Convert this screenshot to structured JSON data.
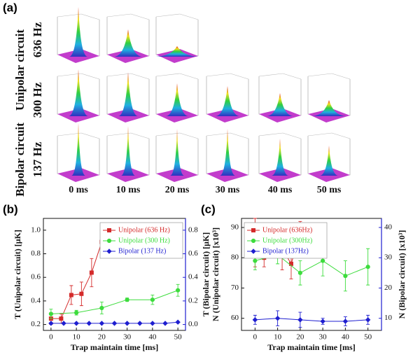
{
  "panel_a": {
    "label": "(a)",
    "rows": [
      {
        "group": "Unipolar circuit",
        "label": "636 Hz"
      },
      {
        "label": "300 Hz"
      },
      {
        "group": "Bipolar circuit",
        "label": "137 Hz"
      }
    ],
    "columns": [
      "0 ms",
      "10 ms",
      "20 ms",
      "30 ms",
      "40 ms",
      "50 ms"
    ]
  },
  "chart_data": [
    {
      "type": "line",
      "panel_label": "(b)",
      "xlabel": "Trap maintain time [ms]",
      "ylabel": "T (Unipolar circuit) [μK]",
      "y2label": "T (Bipolar circuit) [μK]",
      "y2color": "#1f1fd0",
      "xlim": [
        -3,
        53
      ],
      "xticks": [
        0,
        10,
        20,
        30,
        40,
        50
      ],
      "ylim": [
        0.15,
        1.1
      ],
      "yticks": [
        0.2,
        0.4,
        0.6,
        0.8,
        {
          "value": 1,
          "label": "1.0"
        }
      ],
      "y2lim": [
        -0.05,
        0.9
      ],
      "y2ticks": [
        {
          "value": 0,
          "label": "0.0"
        },
        0.2,
        0.4,
        0.6,
        0.8
      ],
      "legend": "upper right",
      "series": [
        {
          "name": "Unipolar (636 Hz)",
          "color": "#d42a2a",
          "marker": "square",
          "x": [
            0,
            4,
            8,
            12,
            16,
            20
          ],
          "values": [
            0.25,
            0.25,
            0.45,
            0.46,
            0.64,
            0.9
          ],
          "errors": [
            0.05,
            0.04,
            0.08,
            0.1,
            0.12,
            0.1
          ]
        },
        {
          "name": "Unipolar (300 Hz)",
          "color": "#3ddc3d",
          "marker": "circle",
          "x": [
            0,
            10,
            20,
            30,
            40,
            50
          ],
          "values": [
            0.29,
            0.3,
            0.34,
            0.41,
            0.41,
            0.49
          ],
          "errors": [
            0.04,
            0.02,
            0.05,
            0.015,
            0.04,
            0.05
          ]
        },
        {
          "name": "Bipolar (137 Hz)",
          "color": "#1f1fd0",
          "marker": "diamond",
          "axis": "y2",
          "x": [
            0,
            5,
            10,
            15,
            20,
            25,
            30,
            35,
            40,
            45,
            50
          ],
          "values": [
            0.01,
            0.01,
            0.01,
            0.01,
            0.01,
            0.01,
            0.01,
            0.01,
            0.01,
            0.01,
            0.02
          ]
        }
      ]
    },
    {
      "type": "line",
      "panel_label": "(c)",
      "xlabel": "Trap maintain time [ms]",
      "ylabel": "N (Unipolar circuit) [x10³]",
      "y2label": "N (Bipolar circuit) [x10³]",
      "y2color": "#1f1fd0",
      "xlim": [
        -6,
        56
      ],
      "xticks": [
        0,
        10,
        20,
        30,
        40,
        50
      ],
      "ylim": [
        56,
        93
      ],
      "yticks": [
        60,
        70,
        80,
        90
      ],
      "y2lim": [
        6,
        43
      ],
      "y2ticks": [
        10,
        20,
        30,
        40
      ],
      "legend": "upper left",
      "series": [
        {
          "name": "Unipolar (636Hz)",
          "color": "#d42a2a",
          "marker": "square",
          "x": [
            0,
            4,
            8,
            12,
            16,
            20
          ],
          "values": [
            85,
            80,
            86,
            83,
            78,
            88
          ],
          "errors": [
            8,
            3,
            5,
            7,
            5,
            4
          ]
        },
        {
          "name": "Unipolar (300Hz)",
          "color": "#3ddc3d",
          "marker": "circle",
          "x": [
            0,
            10,
            20,
            30,
            40,
            50
          ],
          "values": [
            79,
            81,
            75,
            79,
            74,
            77
          ],
          "errors": [
            3,
            3,
            4,
            5,
            5,
            6
          ]
        },
        {
          "name": "Bipolar (137Hz)",
          "color": "#1f1fd0",
          "marker": "diamond",
          "axis": "y2",
          "x": [
            0,
            10,
            20,
            30,
            40,
            50
          ],
          "values": [
            9.5,
            10,
            9.5,
            9,
            9,
            9.5
          ],
          "errors": [
            1.5,
            2.5,
            2.5,
            1,
            1.5,
            1.5
          ]
        }
      ]
    }
  ]
}
